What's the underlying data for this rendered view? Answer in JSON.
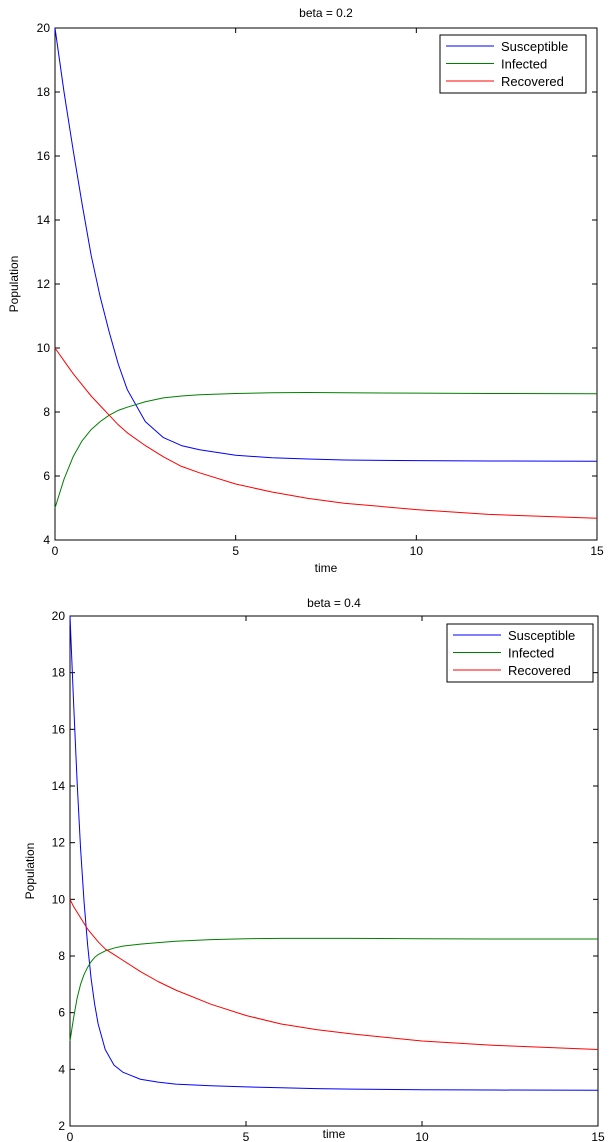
{
  "chart_data": [
    {
      "type": "line",
      "title": "beta = 0.2",
      "xlabel": "time",
      "ylabel": "Population",
      "xlim": [
        0,
        15
      ],
      "ylim": [
        4,
        20
      ],
      "xticks": [
        0,
        5,
        10,
        15
      ],
      "yticks": [
        4,
        6,
        8,
        10,
        12,
        14,
        16,
        18,
        20
      ],
      "xtick_labels": [
        "0",
        "5",
        "10",
        "15"
      ],
      "ytick_labels": [
        "4",
        "6",
        "8",
        "10",
        "12",
        "14",
        "16",
        "18",
        "20"
      ],
      "grid": false,
      "legend_position": "top-right",
      "x": [
        0,
        0.25,
        0.5,
        0.75,
        1,
        1.25,
        1.5,
        1.75,
        2,
        2.5,
        3,
        3.5,
        4,
        5,
        6,
        7,
        8,
        10,
        12,
        15
      ],
      "series": [
        {
          "name": "Susceptible",
          "color": "#0000ff",
          "values": [
            20,
            18.0,
            16.2,
            14.5,
            12.9,
            11.6,
            10.5,
            9.5,
            8.7,
            7.7,
            7.2,
            6.95,
            6.82,
            6.65,
            6.57,
            6.53,
            6.5,
            6.48,
            6.47,
            6.46
          ]
        },
        {
          "name": "Infected",
          "color": "#008000",
          "values": [
            5,
            5.9,
            6.6,
            7.1,
            7.45,
            7.7,
            7.9,
            8.05,
            8.15,
            8.32,
            8.44,
            8.5,
            8.54,
            8.58,
            8.6,
            8.61,
            8.6,
            8.59,
            8.58,
            8.57
          ]
        },
        {
          "name": "Recovered",
          "color": "#ff0000",
          "values": [
            10,
            9.6,
            9.2,
            8.85,
            8.5,
            8.2,
            7.9,
            7.6,
            7.35,
            6.95,
            6.6,
            6.3,
            6.1,
            5.75,
            5.5,
            5.3,
            5.15,
            4.95,
            4.8,
            4.68
          ]
        }
      ]
    },
    {
      "type": "line",
      "title": "beta = 0.4",
      "xlabel": "time",
      "ylabel": "Population",
      "xlim": [
        0,
        15
      ],
      "ylim": [
        2,
        20
      ],
      "xticks": [
        0,
        5,
        10,
        15
      ],
      "yticks": [
        2,
        4,
        6,
        8,
        10,
        12,
        14,
        16,
        18,
        20
      ],
      "xtick_labels": [
        "0",
        "5",
        "10",
        "15"
      ],
      "ytick_labels": [
        "2",
        "4",
        "6",
        "8",
        "10",
        "12",
        "14",
        "16",
        "18",
        "20"
      ],
      "grid": false,
      "legend_position": "top-right",
      "x": [
        0,
        0.1,
        0.2,
        0.3,
        0.4,
        0.5,
        0.6,
        0.7,
        0.8,
        1,
        1.25,
        1.5,
        2,
        2.5,
        3,
        4,
        5,
        6,
        7,
        8,
        10,
        12,
        15
      ],
      "series": [
        {
          "name": "Susceptible",
          "color": "#0000ff",
          "values": [
            20,
            17.0,
            14.2,
            11.8,
            9.9,
            8.4,
            7.2,
            6.3,
            5.6,
            4.7,
            4.15,
            3.9,
            3.65,
            3.55,
            3.48,
            3.42,
            3.38,
            3.35,
            3.32,
            3.3,
            3.28,
            3.27,
            3.26
          ]
        },
        {
          "name": "Infected",
          "color": "#008000",
          "values": [
            5,
            5.8,
            6.5,
            7.0,
            7.35,
            7.6,
            7.8,
            7.95,
            8.05,
            8.18,
            8.28,
            8.35,
            8.42,
            8.47,
            8.52,
            8.58,
            8.61,
            8.62,
            8.62,
            8.62,
            8.61,
            8.6,
            8.6
          ]
        },
        {
          "name": "Recovered",
          "color": "#ff0000",
          "values": [
            10,
            9.75,
            9.55,
            9.35,
            9.15,
            8.95,
            8.8,
            8.65,
            8.5,
            8.25,
            8.05,
            7.85,
            7.45,
            7.1,
            6.8,
            6.3,
            5.9,
            5.6,
            5.4,
            5.25,
            5.0,
            4.85,
            4.7
          ]
        }
      ]
    }
  ]
}
